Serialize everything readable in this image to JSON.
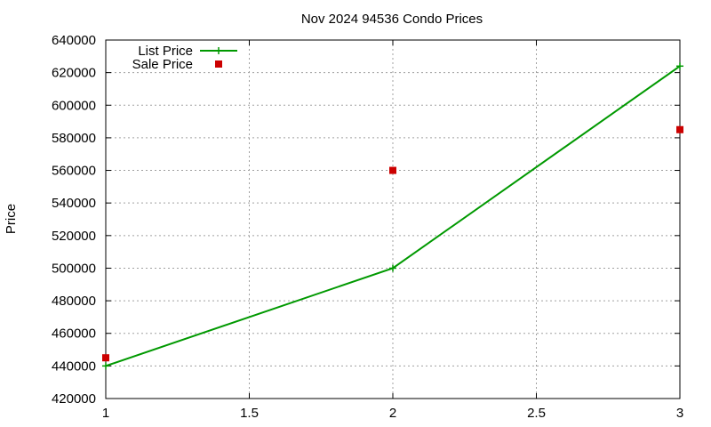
{
  "chart_data": {
    "type": "line",
    "title": "Nov 2024 94536 Condo Prices",
    "xlabel": "",
    "ylabel": "Price",
    "xlim": [
      1,
      3
    ],
    "ylim": [
      420000,
      640000
    ],
    "x_ticks": [
      1,
      1.5,
      2,
      2.5,
      3
    ],
    "x_tick_labels": [
      "1",
      "1.5",
      "2",
      "2.5",
      "3"
    ],
    "y_ticks": [
      420000,
      440000,
      460000,
      480000,
      500000,
      520000,
      540000,
      560000,
      580000,
      600000,
      620000,
      640000
    ],
    "y_tick_labels": [
      "420000",
      "440000",
      "460000",
      "480000",
      "500000",
      "520000",
      "540000",
      "560000",
      "580000",
      "600000",
      "620000",
      "640000"
    ],
    "grid": true,
    "legend_position": "top-left",
    "series": [
      {
        "name": "List Price",
        "style": "linespoints",
        "marker": "plus",
        "color": "#009900",
        "x": [
          1,
          2,
          3
        ],
        "y": [
          440000,
          500000,
          624000
        ]
      },
      {
        "name": "Sale Price",
        "style": "points",
        "marker": "square",
        "color": "#cc0000",
        "x": [
          1,
          2,
          3
        ],
        "y": [
          445000,
          560000,
          585000
        ]
      }
    ]
  }
}
